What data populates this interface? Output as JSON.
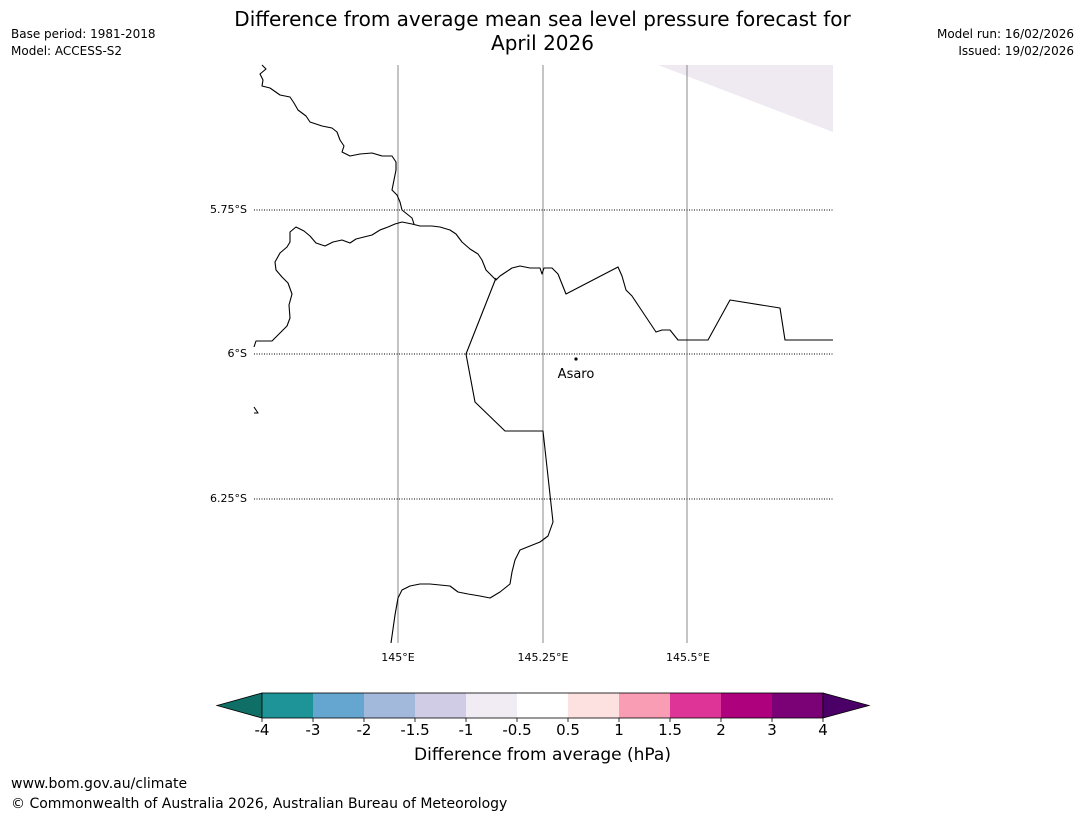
{
  "header": {
    "title_line1": "Difference from average mean sea level pressure forecast for",
    "title_line2": "April 2026",
    "base_period": "Base period: 1981-2018",
    "model": "Model: ACCESS-S2",
    "model_run": "Model run: 16/02/2026",
    "issued": "Issued: 19/02/2026"
  },
  "map": {
    "lat_labels": [
      "5.75°S",
      "6°S",
      "6.25°S"
    ],
    "lon_labels": [
      "145°E",
      "145.25°E",
      "145.5°E"
    ],
    "place": "Asaro",
    "shaded_area_color": "#efeaf2"
  },
  "colorbar": {
    "tick_labels": [
      "-4",
      "-3",
      "-2",
      "-1.5",
      "-1",
      "-0.5",
      "0.5",
      "1",
      "1.5",
      "2",
      "3",
      "4"
    ],
    "colors": [
      "#0f6f66",
      "#1f9498",
      "#64a6cf",
      "#a3b9dc",
      "#d0cce6",
      "#f1ecf4",
      "#ffffff",
      "#fde0e0",
      "#f99db4",
      "#de3497",
      "#ad017e",
      "#7b0177",
      "#4b0068"
    ],
    "label": "Difference from average (hPa)"
  },
  "footer": {
    "url": "www.bom.gov.au/climate",
    "copyright": "© Commonwealth of Australia 2026, Australian Bureau of Meteorology"
  }
}
